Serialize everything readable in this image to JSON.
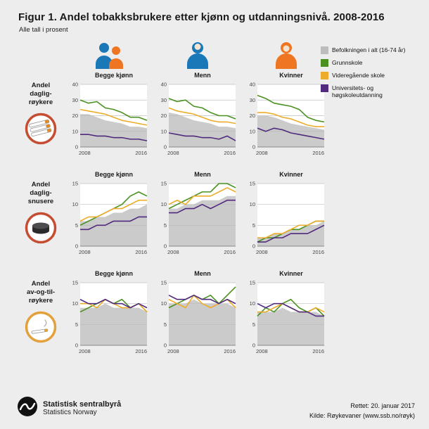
{
  "title": "Figur 1. Andel tobakksbrukere etter kjønn og utdanningsnivå. 2008-2016",
  "subtitle": "Alle tall i prosent",
  "columns": [
    {
      "label": "Begge kjønn",
      "icon": "both-genders-icon"
    },
    {
      "label": "Menn",
      "icon": "man-icon"
    },
    {
      "label": "Kvinner",
      "icon": "woman-icon"
    }
  ],
  "rows": [
    {
      "label": "Andel\ndaglig-\nrøykere",
      "icon": "cigarettes-icon"
    },
    {
      "label": "Andel\ndaglig-\nsnusere",
      "icon": "snus-can-icon"
    },
    {
      "label": "Andel\nav-og-til-\nrøykere",
      "icon": "occasional-cigarette-icon"
    }
  ],
  "legend": {
    "items": [
      {
        "label": "Befolkningen i alt (16-74 år)",
        "color": "#bdbdbd"
      },
      {
        "label": "Grunnskole",
        "color": "#4a9121"
      },
      {
        "label": "Videregående skole",
        "color": "#edac2c"
      },
      {
        "label": "Universitets- og høgskoleutdanning",
        "color": "#512a7e"
      }
    ]
  },
  "colors": {
    "background": "#ededed",
    "population_area": "#cbcbcb",
    "grunnskole": "#4a9121",
    "videregaende": "#edac2c",
    "universitet": "#512a7e",
    "icon_blue": "#1a78b8",
    "icon_orange": "#ee7623"
  },
  "footer": {
    "org_name_no": "Statistisk sentralbyrå",
    "org_name_en": "Statistics Norway",
    "corrected": "Rettet: 20. januar 2017",
    "source": "Kilde: Røykevaner (www.ssb.no/røyk)"
  },
  "chart_data": [
    {
      "type": "line",
      "group": "Andel dagligrøykere",
      "title": "Begge kjønn",
      "x": [
        2008,
        2009,
        2010,
        2011,
        2012,
        2013,
        2014,
        2015,
        2016
      ],
      "x_tick_labels": [
        "2008",
        "2016"
      ],
      "ylim": [
        0,
        40
      ],
      "yticks": [
        0,
        10,
        20,
        30,
        40
      ],
      "series": [
        {
          "name": "Befolkningen i alt (16-74 år)",
          "style": "area",
          "color": "#cbcbcb",
          "values": [
            21,
            21,
            19,
            17,
            16,
            15,
            13,
            13,
            12
          ]
        },
        {
          "name": "Grunnskole",
          "style": "line",
          "color": "#4a9121",
          "values": [
            30,
            28,
            29,
            25,
            24,
            22,
            19,
            19,
            17
          ]
        },
        {
          "name": "Videregående skole",
          "style": "line",
          "color": "#edac2c",
          "values": [
            24,
            23,
            22,
            21,
            19,
            17,
            16,
            15,
            14
          ]
        },
        {
          "name": "Universitets- og høgskoleutdanning",
          "style": "line",
          "color": "#512a7e",
          "values": [
            8,
            8,
            7,
            7,
            6,
            6,
            5,
            5,
            4
          ]
        }
      ]
    },
    {
      "type": "line",
      "group": "Andel dagligrøykere",
      "title": "Menn",
      "x": [
        2008,
        2009,
        2010,
        2011,
        2012,
        2013,
        2014,
        2015,
        2016
      ],
      "x_tick_labels": [
        "2008",
        "2016"
      ],
      "ylim": [
        0,
        40
      ],
      "yticks": [
        0,
        10,
        20,
        30,
        40
      ],
      "series": [
        {
          "name": "Befolkningen i alt (16-74 år)",
          "style": "area",
          "color": "#cbcbcb",
          "values": [
            22,
            21,
            19,
            17,
            16,
            15,
            13,
            13,
            12
          ]
        },
        {
          "name": "Grunnskole",
          "style": "line",
          "color": "#4a9121",
          "values": [
            31,
            29,
            30,
            26,
            25,
            22,
            20,
            20,
            18
          ]
        },
        {
          "name": "Videregående skole",
          "style": "line",
          "color": "#edac2c",
          "values": [
            25,
            23,
            22,
            21,
            19,
            17,
            16,
            16,
            15
          ]
        },
        {
          "name": "Universitets- og høgskoleutdanning",
          "style": "line",
          "color": "#512a7e",
          "values": [
            9,
            8,
            7,
            7,
            6,
            6,
            5,
            7,
            4
          ]
        }
      ]
    },
    {
      "type": "line",
      "group": "Andel dagligrøykere",
      "title": "Kvinner",
      "x": [
        2008,
        2009,
        2010,
        2011,
        2012,
        2013,
        2014,
        2015,
        2016
      ],
      "x_tick_labels": [
        "2008",
        "2016"
      ],
      "ylim": [
        0,
        40
      ],
      "yticks": [
        0,
        10,
        20,
        30,
        40
      ],
      "series": [
        {
          "name": "Befolkningen i alt (16-74 år)",
          "style": "area",
          "color": "#cbcbcb",
          "values": [
            20,
            20,
            19,
            17,
            15,
            14,
            13,
            12,
            11
          ]
        },
        {
          "name": "Grunnskole",
          "style": "line",
          "color": "#4a9121",
          "values": [
            33,
            31,
            28,
            27,
            26,
            24,
            19,
            17,
            16
          ]
        },
        {
          "name": "Videregående skole",
          "style": "line",
          "color": "#edac2c",
          "values": [
            22,
            22,
            21,
            19,
            18,
            16,
            14,
            13,
            13
          ]
        },
        {
          "name": "Universitets- og høgskoleutdanning",
          "style": "line",
          "color": "#512a7e",
          "values": [
            12,
            10,
            12,
            11,
            9,
            8,
            7,
            6,
            5
          ]
        }
      ]
    },
    {
      "type": "line",
      "group": "Andel dagligsnusere",
      "title": "Begge kjønn",
      "x": [
        2008,
        2009,
        2010,
        2011,
        2012,
        2013,
        2014,
        2015,
        2016
      ],
      "x_tick_labels": [
        "2008",
        "2016"
      ],
      "ylim": [
        0,
        15
      ],
      "yticks": [
        0,
        5,
        10,
        15
      ],
      "series": [
        {
          "name": "Befolkningen i alt (16-74 år)",
          "style": "area",
          "color": "#cbcbcb",
          "values": [
            6,
            6,
            7,
            7,
            8,
            8,
            9,
            9,
            10
          ]
        },
        {
          "name": "Grunnskole",
          "style": "line",
          "color": "#4a9121",
          "values": [
            5,
            6,
            7,
            8,
            9,
            10,
            12,
            13,
            12
          ]
        },
        {
          "name": "Videregående skole",
          "style": "line",
          "color": "#edac2c",
          "values": [
            6,
            7,
            7,
            8,
            9,
            9,
            10,
            11,
            11
          ]
        },
        {
          "name": "Universitets- og høgskoleutdanning",
          "style": "line",
          "color": "#512a7e",
          "values": [
            4,
            4,
            5,
            5,
            6,
            6,
            6,
            7,
            7
          ]
        }
      ]
    },
    {
      "type": "line",
      "group": "Andel dagligsnusere",
      "title": "Menn",
      "x": [
        2008,
        2009,
        2010,
        2011,
        2012,
        2013,
        2014,
        2015,
        2016
      ],
      "x_tick_labels": [
        "2008",
        "2016"
      ],
      "ylim": [
        0,
        15
      ],
      "yticks": [
        0,
        5,
        10,
        15
      ],
      "series": [
        {
          "name": "Befolkningen i alt (16-74 år)",
          "style": "area",
          "color": "#cbcbcb",
          "values": [
            9,
            9,
            10,
            10,
            11,
            11,
            11,
            12,
            12
          ]
        },
        {
          "name": "Grunnskole",
          "style": "line",
          "color": "#4a9121",
          "values": [
            9,
            10,
            11,
            12,
            13,
            13,
            15,
            15,
            14
          ]
        },
        {
          "name": "Videregående skole",
          "style": "line",
          "color": "#edac2c",
          "values": [
            10,
            11,
            10,
            12,
            12,
            12,
            13,
            14,
            13
          ]
        },
        {
          "name": "Universitets- og høgskoleutdanning",
          "style": "line",
          "color": "#512a7e",
          "values": [
            8,
            8,
            9,
            9,
            10,
            9,
            10,
            11,
            11
          ]
        }
      ]
    },
    {
      "type": "line",
      "group": "Andel dagligsnusere",
      "title": "Kvinner",
      "x": [
        2008,
        2009,
        2010,
        2011,
        2012,
        2013,
        2014,
        2015,
        2016
      ],
      "x_tick_labels": [
        "2008",
        "2016"
      ],
      "ylim": [
        0,
        15
      ],
      "yticks": [
        0,
        5,
        10,
        15
      ],
      "series": [
        {
          "name": "Befolkningen i alt (16-74 år)",
          "style": "area",
          "color": "#cbcbcb",
          "values": [
            2,
            2,
            3,
            3,
            4,
            4,
            5,
            5,
            6
          ]
        },
        {
          "name": "Grunnskole",
          "style": "line",
          "color": "#4a9121",
          "values": [
            1,
            2,
            2,
            3,
            4,
            4,
            5,
            6,
            6
          ]
        },
        {
          "name": "Videregående skole",
          "style": "line",
          "color": "#edac2c",
          "values": [
            2,
            2,
            3,
            3,
            4,
            5,
            5,
            6,
            6
          ]
        },
        {
          "name": "Universitets- og høgskoleutdanning",
          "style": "line",
          "color": "#512a7e",
          "values": [
            1,
            1,
            2,
            2,
            3,
            3,
            3,
            4,
            5
          ]
        }
      ]
    },
    {
      "type": "line",
      "group": "Andel av-og-til-røykere",
      "title": "Begge kjønn",
      "x": [
        2008,
        2009,
        2010,
        2011,
        2012,
        2013,
        2014,
        2015,
        2016
      ],
      "x_tick_labels": [
        "2008",
        "2016"
      ],
      "ylim": [
        0,
        15
      ],
      "yticks": [
        0,
        5,
        10,
        15
      ],
      "series": [
        {
          "name": "Befolkningen i alt (16-74 år)",
          "style": "area",
          "color": "#cbcbcb",
          "values": [
            9,
            9,
            9,
            10,
            9,
            9,
            9,
            9,
            8
          ]
        },
        {
          "name": "Grunnskole",
          "style": "line",
          "color": "#4a9121",
          "values": [
            8,
            9,
            10,
            11,
            10,
            11,
            9,
            10,
            8
          ]
        },
        {
          "name": "Videregående skole",
          "style": "line",
          "color": "#edac2c",
          "values": [
            10,
            10,
            9,
            11,
            10,
            9,
            9,
            10,
            8
          ]
        },
        {
          "name": "Universitets- og høgskoleutdanning",
          "style": "line",
          "color": "#512a7e",
          "values": [
            11,
            10,
            10,
            11,
            10,
            10,
            9,
            10,
            9
          ]
        }
      ]
    },
    {
      "type": "line",
      "group": "Andel av-og-til-røykere",
      "title": "Menn",
      "x": [
        2008,
        2009,
        2010,
        2011,
        2012,
        2013,
        2014,
        2015,
        2016
      ],
      "x_tick_labels": [
        "2008",
        "2016"
      ],
      "ylim": [
        0,
        15
      ],
      "yticks": [
        0,
        5,
        10,
        15
      ],
      "series": [
        {
          "name": "Befolkningen i alt (16-74 år)",
          "style": "area",
          "color": "#cbcbcb",
          "values": [
            10,
            10,
            10,
            11,
            10,
            10,
            10,
            10,
            9
          ]
        },
        {
          "name": "Grunnskole",
          "style": "line",
          "color": "#4a9121",
          "values": [
            9,
            10,
            11,
            12,
            11,
            12,
            10,
            12,
            14
          ]
        },
        {
          "name": "Videregående skole",
          "style": "line",
          "color": "#edac2c",
          "values": [
            11,
            10,
            9,
            12,
            10,
            9,
            10,
            11,
            9
          ]
        },
        {
          "name": "Universitets- og høgskoleutdanning",
          "style": "line",
          "color": "#512a7e",
          "values": [
            12,
            11,
            11,
            12,
            11,
            11,
            10,
            11,
            10
          ]
        }
      ]
    },
    {
      "type": "line",
      "group": "Andel av-og-til-røykere",
      "title": "Kvinner",
      "x": [
        2008,
        2009,
        2010,
        2011,
        2012,
        2013,
        2014,
        2015,
        2016
      ],
      "x_tick_labels": [
        "2008",
        "2016"
      ],
      "ylim": [
        0,
        15
      ],
      "yticks": [
        0,
        5,
        10,
        15
      ],
      "series": [
        {
          "name": "Befolkningen i alt (16-74 år)",
          "style": "area",
          "color": "#cbcbcb",
          "values": [
            8,
            8,
            8,
            9,
            8,
            8,
            8,
            8,
            7
          ]
        },
        {
          "name": "Grunnskole",
          "style": "line",
          "color": "#4a9121",
          "values": [
            7,
            9,
            8,
            10,
            11,
            9,
            8,
            9,
            7
          ]
        },
        {
          "name": "Videregående skole",
          "style": "line",
          "color": "#edac2c",
          "values": [
            8,
            8,
            9,
            10,
            9,
            8,
            8,
            9,
            8
          ]
        },
        {
          "name": "Universitets- og høgskoleutdanning",
          "style": "line",
          "color": "#512a7e",
          "values": [
            10,
            9,
            10,
            10,
            9,
            8,
            8,
            7,
            7
          ]
        }
      ]
    }
  ]
}
